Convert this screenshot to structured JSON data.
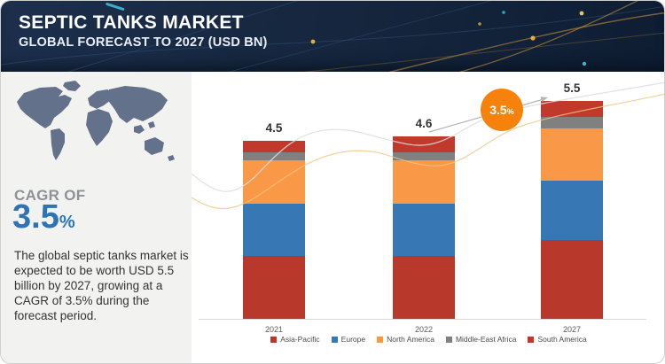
{
  "header": {
    "title": "SEPTIC TANKS MARKET",
    "subtitle": "GLOBAL FORECAST TO 2027 (USD BN)"
  },
  "sidebar": {
    "cagr_label": "CAGR OF",
    "cagr_value": "3.5",
    "cagr_unit": "%",
    "description": "The global septic tanks market is expected to be worth USD 5.5 billion by 2027, growing at a CAGR of 3.5% during the forecast period.",
    "accent_color": "#2e74b5",
    "panel_color": "#f2f2f1"
  },
  "badge": {
    "value": "3.5",
    "unit": "%",
    "color": "#f6820c"
  },
  "chart_data": {
    "type": "bar",
    "stacked": true,
    "title": "Septic Tanks Market",
    "subtitle": "Global Forecast to 2027 (USD BN)",
    "unit": "USD BN",
    "categories": [
      "2021",
      "2022",
      "2027"
    ],
    "totals": [
      4.5,
      4.6,
      5.5
    ],
    "value_labels": [
      "4.5",
      "4.6",
      "5.5"
    ],
    "series": [
      {
        "name": "Asia-Pacific",
        "color": "#b8392c",
        "values": [
          1.6,
          1.6,
          2.0
        ]
      },
      {
        "name": "Europe",
        "color": "#3778b4",
        "values": [
          1.3,
          1.3,
          1.5
        ]
      },
      {
        "name": "North America",
        "color": "#f99846",
        "values": [
          1.1,
          1.1,
          1.3
        ]
      },
      {
        "name": "Middle-East Africa",
        "color": "#808080",
        "values": [
          0.2,
          0.2,
          0.3
        ]
      },
      {
        "name": "South America",
        "color": "#c0392b",
        "values": [
          0.3,
          0.4,
          0.4
        ]
      }
    ],
    "legend_position": "bottom",
    "grid": false,
    "ylim": [
      0,
      6
    ]
  }
}
